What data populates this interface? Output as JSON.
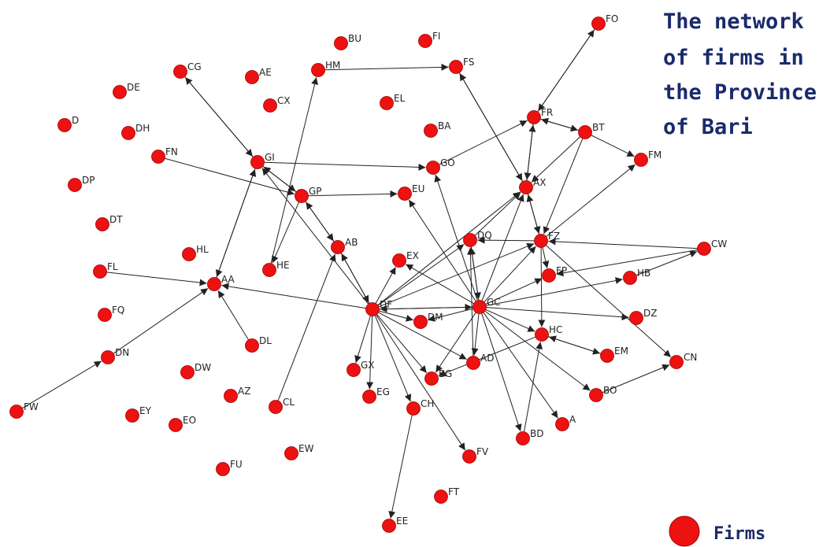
{
  "title": {
    "lines": [
      "The network",
      "of firms in",
      "the Province",
      "of Bari"
    ]
  },
  "legend": {
    "label": "Firms"
  },
  "colors": {
    "node": "#ee1111",
    "node_stroke": "#a00000",
    "edge": "#222222",
    "title": "#1a2a6c"
  },
  "nodes": [
    "FO",
    "BU",
    "FI",
    "HM",
    "FS",
    "CG",
    "AE",
    "DE",
    "CX",
    "EL",
    "FR",
    "BT",
    "D",
    "DH",
    "BA",
    "FN",
    "GI",
    "GO",
    "FM",
    "DP",
    "AX",
    "GP",
    "EU",
    "DT",
    "FZ",
    "DQ",
    "AB",
    "CW",
    "HL",
    "EX",
    "FL",
    "HE",
    "FP",
    "HB",
    "AA",
    "DF",
    "GC",
    "FQ",
    "DM",
    "DZ",
    "DL",
    "HC",
    "EM",
    "DN",
    "AD",
    "CN",
    "DW",
    "GX",
    "BG",
    "EG",
    "AZ",
    "CL",
    "BO",
    "CH",
    "FW",
    "EY",
    "EO",
    "A",
    "BD",
    "FV",
    "EW",
    "FU",
    "FT",
    "EE"
  ],
  "edges": [
    [
      "FR",
      "FO"
    ],
    [
      "FO",
      "FR"
    ],
    [
      "HM",
      "FS"
    ],
    [
      "FS",
      "AX"
    ],
    [
      "CG",
      "GI"
    ],
    [
      "GI",
      "CG"
    ],
    [
      "FN",
      "GP"
    ],
    [
      "GI",
      "GO"
    ],
    [
      "GI",
      "GP"
    ],
    [
      "GP",
      "GI"
    ],
    [
      "GI",
      "AA"
    ],
    [
      "AA",
      "GI"
    ],
    [
      "GO",
      "FR"
    ],
    [
      "FR",
      "BT"
    ],
    [
      "BT",
      "FR"
    ],
    [
      "BT",
      "FM"
    ],
    [
      "FR",
      "AX"
    ],
    [
      "AX",
      "FR"
    ],
    [
      "AX",
      "FZ"
    ],
    [
      "FZ",
      "AX"
    ],
    [
      "BT",
      "AX"
    ],
    [
      "BT",
      "FZ"
    ],
    [
      "FZ",
      "FM"
    ],
    [
      "GP",
      "EU"
    ],
    [
      "GP",
      "AB"
    ],
    [
      "AB",
      "GP"
    ],
    [
      "HE",
      "HM"
    ],
    [
      "GP",
      "HE"
    ],
    [
      "FL",
      "AA"
    ],
    [
      "DN",
      "AA"
    ],
    [
      "FW",
      "DN"
    ],
    [
      "DL",
      "AA"
    ],
    [
      "CL",
      "AB"
    ],
    [
      "DF",
      "AA"
    ],
    [
      "DF",
      "GI"
    ],
    [
      "DF",
      "DQ"
    ],
    [
      "DF",
      "EX"
    ],
    [
      "DF",
      "DM"
    ],
    [
      "DF",
      "GX"
    ],
    [
      "DF",
      "EG"
    ],
    [
      "DF",
      "CH"
    ],
    [
      "DF",
      "FV"
    ],
    [
      "DF",
      "AD"
    ],
    [
      "DF",
      "BG"
    ],
    [
      "DF",
      "AB"
    ],
    [
      "AB",
      "DF"
    ],
    [
      "DF",
      "FZ"
    ],
    [
      "DF",
      "AX"
    ],
    [
      "CH",
      "EE"
    ],
    [
      "GC",
      "EU"
    ],
    [
      "GC",
      "GO"
    ],
    [
      "GC",
      "DQ"
    ],
    [
      "GC",
      "EX"
    ],
    [
      "GC",
      "FP"
    ],
    [
      "GC",
      "HB"
    ],
    [
      "GC",
      "DZ"
    ],
    [
      "GC",
      "HC"
    ],
    [
      "GC",
      "BO"
    ],
    [
      "GC",
      "A"
    ],
    [
      "GC",
      "BD"
    ],
    [
      "GC",
      "AD"
    ],
    [
      "GC",
      "BG"
    ],
    [
      "GC",
      "DM"
    ],
    [
      "GC",
      "AX"
    ],
    [
      "GC",
      "FZ"
    ],
    [
      "DQ",
      "AX"
    ],
    [
      "DQ",
      "GC"
    ],
    [
      "FZ",
      "HC"
    ],
    [
      "FZ",
      "FP"
    ],
    [
      "FZ",
      "DQ"
    ],
    [
      "CW",
      "FP"
    ],
    [
      "CW",
      "FZ"
    ],
    [
      "HB",
      "CW"
    ],
    [
      "HC",
      "EM"
    ],
    [
      "EM",
      "HC"
    ],
    [
      "HC",
      "BG"
    ],
    [
      "BO",
      "CN"
    ],
    [
      "FZ",
      "CN"
    ],
    [
      "AX",
      "FS"
    ],
    [
      "DF",
      "GC"
    ],
    [
      "GC",
      "DF"
    ],
    [
      "BD",
      "HC"
    ],
    [
      "AD",
      "DQ"
    ]
  ]
}
